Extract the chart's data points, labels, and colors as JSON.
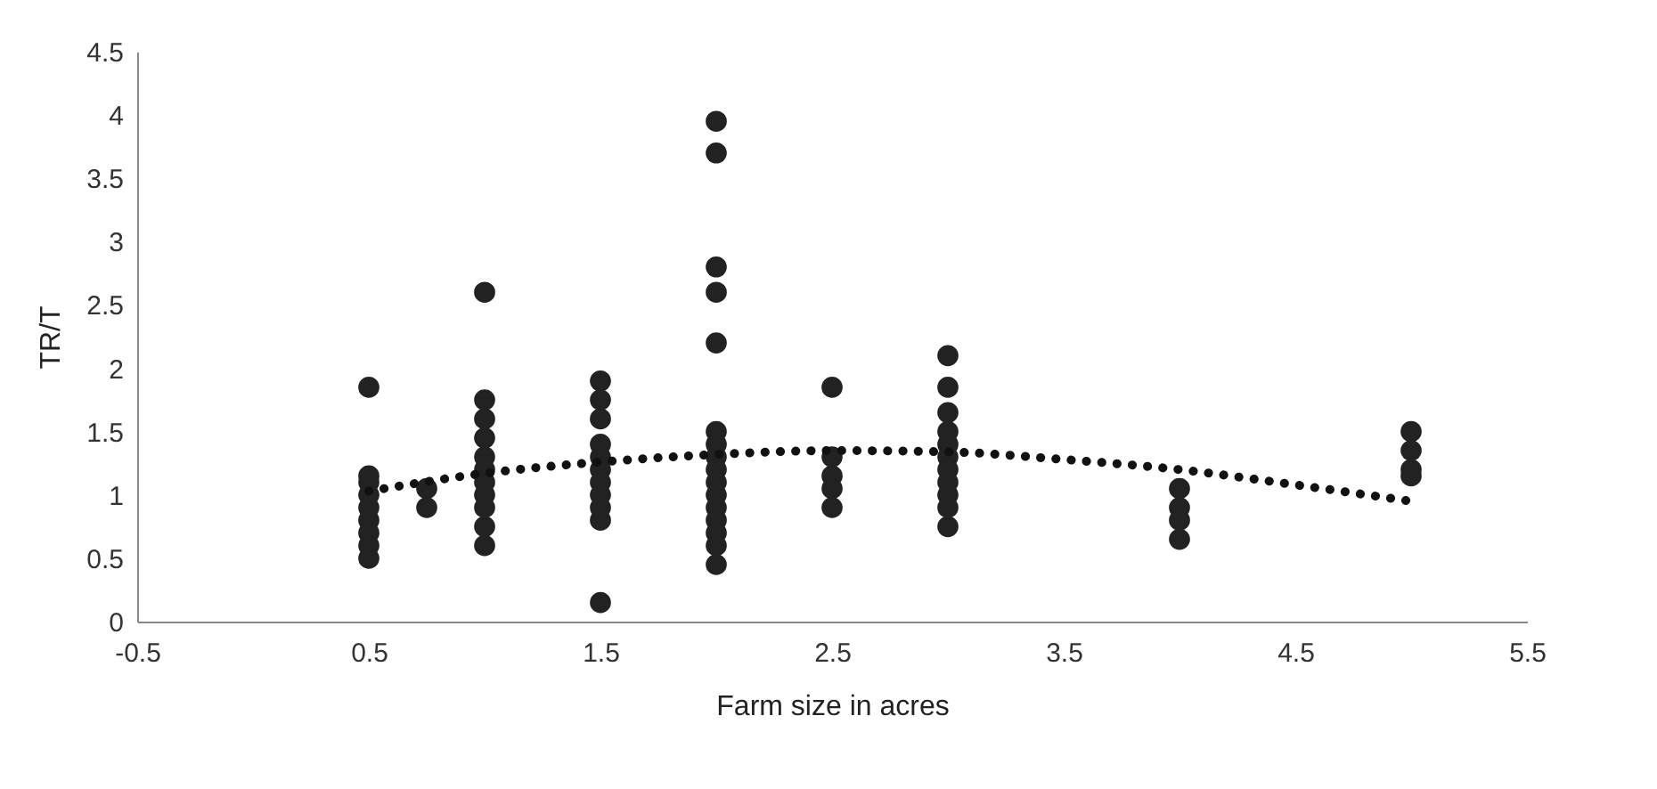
{
  "chart_data": {
    "type": "scatter",
    "xlabel": "Farm size in acres",
    "ylabel": "TR/T",
    "xlim": [
      -0.5,
      5.5
    ],
    "xticks": [
      -0.5,
      0.5,
      1.5,
      2.5,
      3.5,
      4.5,
      5.5
    ],
    "ylim": [
      0,
      4.5
    ],
    "yticks": [
      0,
      0.5,
      1,
      1.5,
      2,
      2.5,
      3,
      3.5,
      4,
      4.5
    ],
    "grid": false,
    "series": [
      {
        "color": "#222222",
        "marker": "circle",
        "x": [
          0.5,
          0.5,
          0.5,
          0.5,
          0.5,
          0.5,
          0.5,
          0.5,
          0.5,
          0.75,
          0.75,
          1,
          1,
          1,
          1,
          1,
          1,
          1,
          1,
          1,
          1,
          1,
          1.5,
          1.5,
          1.5,
          1.5,
          1.5,
          1.5,
          1.5,
          1.5,
          1.5,
          1.5,
          1.5,
          2,
          2,
          2,
          2,
          2,
          2,
          2,
          2,
          2,
          2,
          2,
          2,
          2,
          2,
          2,
          2,
          2.5,
          2.5,
          2.5,
          2.5,
          2.5,
          3,
          3,
          3,
          3,
          3,
          3,
          3,
          3,
          3,
          3,
          3,
          4,
          4,
          4,
          4,
          5,
          5,
          5,
          5
        ],
        "values": [
          1.85,
          1.15,
          1.1,
          1.0,
          0.9,
          0.8,
          0.7,
          0.6,
          0.5,
          1.05,
          0.9,
          2.6,
          1.75,
          1.6,
          1.45,
          1.3,
          1.2,
          1.1,
          1.0,
          0.9,
          0.75,
          0.6,
          1.9,
          1.75,
          1.6,
          1.4,
          1.3,
          1.2,
          1.1,
          1.0,
          0.9,
          0.8,
          0.15,
          3.95,
          3.7,
          2.8,
          2.6,
          2.2,
          1.5,
          1.4,
          1.3,
          1.2,
          1.1,
          1.0,
          0.9,
          0.8,
          0.7,
          0.6,
          0.45,
          1.85,
          1.3,
          1.15,
          1.05,
          0.9,
          2.1,
          1.85,
          1.65,
          1.5,
          1.4,
          1.3,
          1.2,
          1.1,
          1.0,
          0.9,
          0.75,
          1.05,
          0.9,
          0.8,
          0.65,
          1.5,
          1.35,
          1.2,
          1.15
        ]
      },
      {
        "type": "line",
        "color": "#111111",
        "line_style": "dotted",
        "x": [
          0.5,
          1,
          1.5,
          2,
          2.5,
          3,
          3.5,
          4,
          4.5,
          5
        ],
        "values": [
          1.03,
          1.17,
          1.26,
          1.32,
          1.35,
          1.34,
          1.28,
          1.2,
          1.08,
          0.95
        ]
      }
    ]
  }
}
